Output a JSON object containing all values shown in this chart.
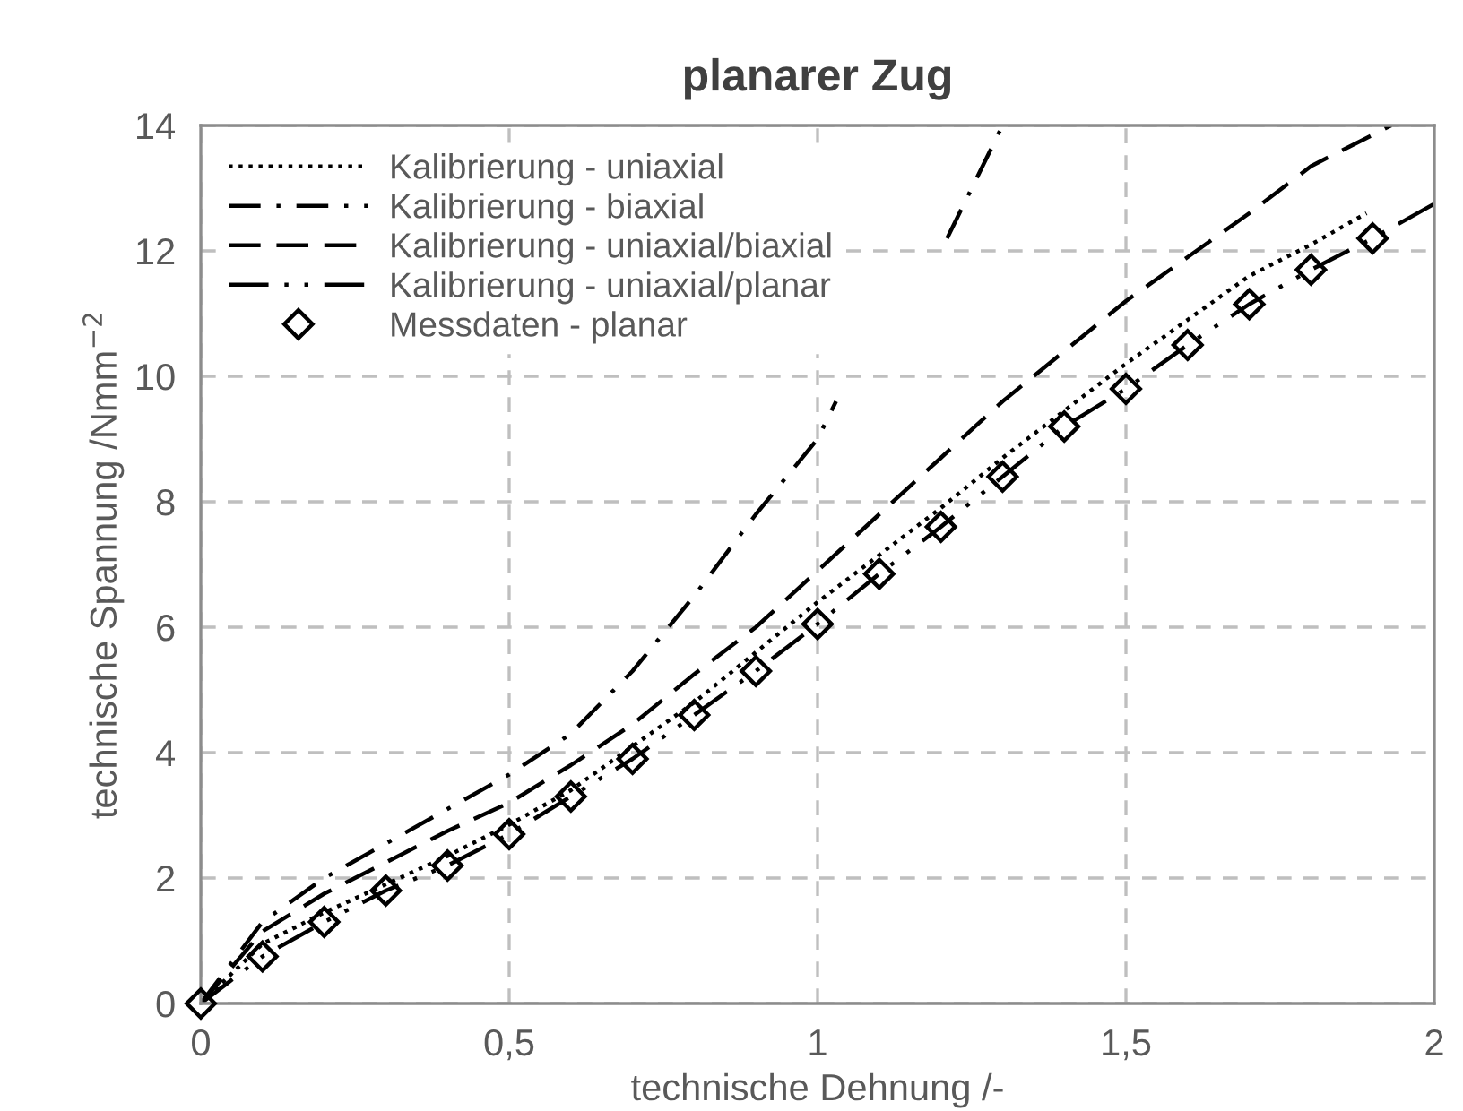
{
  "chart_data": {
    "type": "line",
    "title": "planarer Zug",
    "xlabel": "technische Dehnung /-",
    "ylabel": "technische Spannung /Nmm$^{−2}$",
    "xlim": [
      0,
      2
    ],
    "ylim": [
      0,
      14
    ],
    "xticks": [
      0,
      {
        "value": 0.5,
        "label": "0,5"
      },
      1,
      {
        "value": 1.5,
        "label": "1,5"
      },
      2
    ],
    "yticks": [
      0,
      2,
      4,
      6,
      8,
      10,
      12,
      14
    ],
    "grid": true,
    "legend": "top left",
    "series": [
      {
        "name": "Kalibrierung - uniaxial",
        "color": "#000000",
        "line_style": "dotted",
        "marker": "none",
        "x": [
          0,
          0.1,
          0.2,
          0.3,
          0.4,
          0.5,
          0.6,
          0.7,
          0.8,
          0.9,
          1.0,
          1.1,
          1.2,
          1.3,
          1.4,
          1.5,
          1.6,
          1.7,
          1.8,
          1.89
        ],
        "values": [
          0,
          0.95,
          1.45,
          1.9,
          2.35,
          2.85,
          3.4,
          4.1,
          4.8,
          5.6,
          6.4,
          7.15,
          7.9,
          8.7,
          9.45,
          10.2,
          10.9,
          11.6,
          12.1,
          12.6
        ]
      },
      {
        "name": "Kalibrierung - biaxial",
        "color": "#000000",
        "line_style": "dashdot",
        "marker": "none",
        "x": [
          0,
          0.1,
          0.2,
          0.3,
          0.4,
          0.5,
          0.6,
          0.7,
          0.8,
          0.9,
          1.0,
          1.03,
          1.1,
          1.21,
          1.3
        ],
        "values": [
          0,
          1.3,
          2.0,
          2.55,
          3.1,
          3.65,
          4.3,
          5.3,
          6.5,
          7.8,
          9.0,
          9.6,
          null,
          12.2,
          14
        ]
      },
      {
        "name": "Kalibrierung - uniaxial/biaxial",
        "color": "#000000",
        "line_style": "dashed",
        "marker": "none",
        "x": [
          0,
          0.1,
          0.2,
          0.3,
          0.4,
          0.5,
          0.6,
          0.7,
          0.8,
          0.9,
          1.0,
          1.1,
          1.2,
          1.3,
          1.4,
          1.5,
          1.6,
          1.7,
          1.8,
          1.93
        ],
        "values": [
          0,
          1.15,
          1.75,
          2.25,
          2.75,
          3.2,
          3.8,
          4.45,
          5.25,
          6.0,
          6.9,
          7.8,
          8.7,
          9.6,
          10.4,
          11.2,
          11.9,
          12.6,
          13.35,
          14
        ]
      },
      {
        "name": "Kalibrierung - uniaxial/planar",
        "color": "#000000",
        "line_style": "dashdotdot",
        "marker": "none",
        "x": [
          0,
          0.1,
          0.2,
          0.3,
          0.4,
          0.5,
          0.6,
          0.7,
          0.8,
          0.9,
          1.0,
          1.1,
          1.2,
          1.3,
          1.4,
          1.5,
          1.6,
          1.7,
          1.8,
          1.9,
          2.0
        ],
        "values": [
          0,
          0.75,
          1.3,
          1.8,
          2.2,
          2.7,
          3.3,
          3.9,
          4.6,
          5.3,
          6.05,
          6.85,
          7.6,
          8.4,
          9.2,
          9.8,
          10.5,
          11.15,
          11.7,
          12.2,
          12.75
        ]
      },
      {
        "name": "Messdaten - planar",
        "type": "scatter",
        "color": "#000000",
        "marker": "diamond",
        "x": [
          0,
          0.1,
          0.2,
          0.3,
          0.4,
          0.5,
          0.6,
          0.7,
          0.8,
          0.9,
          1.0,
          1.1,
          1.2,
          1.3,
          1.4,
          1.5,
          1.6,
          1.7,
          1.8,
          1.9
        ],
        "values": [
          0,
          0.75,
          1.3,
          1.8,
          2.2,
          2.7,
          3.3,
          3.9,
          4.6,
          5.3,
          6.05,
          6.85,
          7.6,
          8.4,
          9.2,
          9.8,
          10.5,
          11.15,
          11.7,
          12.2
        ]
      }
    ]
  }
}
